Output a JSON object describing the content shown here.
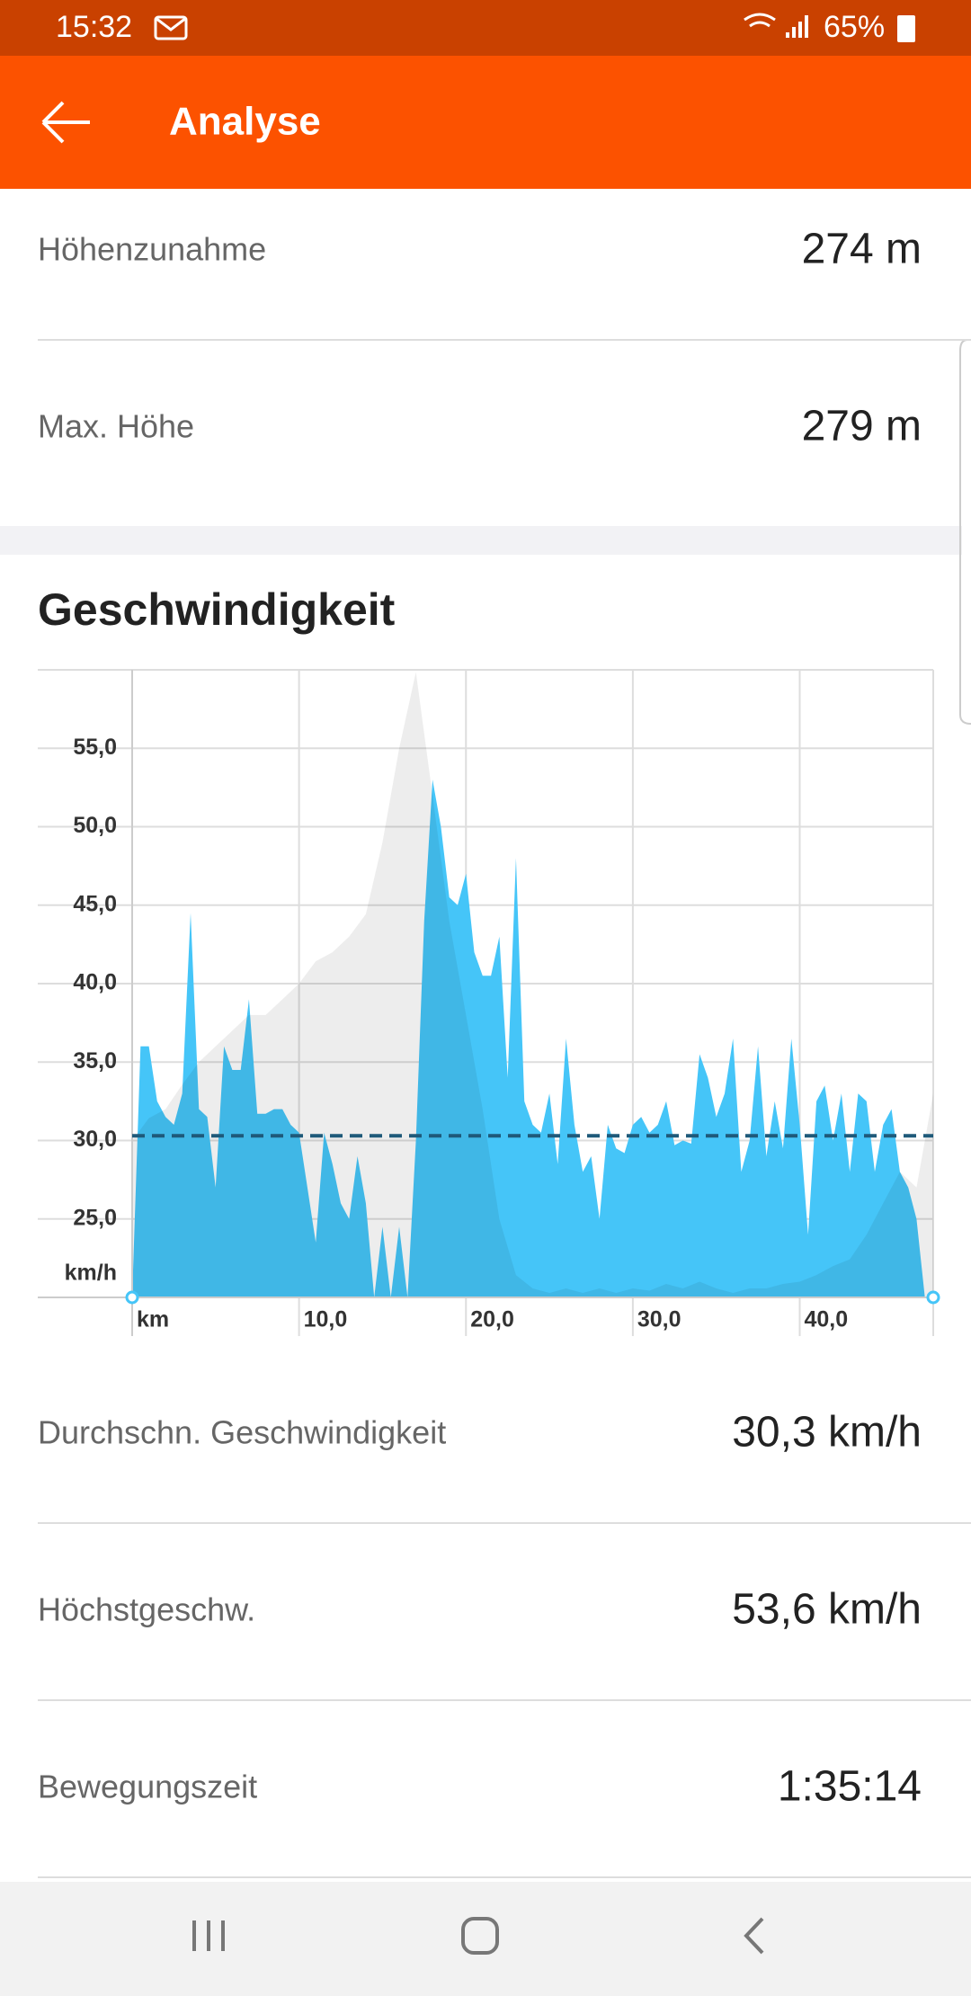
{
  "status_bar": {
    "time": "15:32",
    "battery": "65%"
  },
  "header": {
    "title": "Analyse"
  },
  "stats_top": [
    {
      "label": "Höhenzunahme",
      "value": "274 m"
    },
    {
      "label": "Max. Höhe",
      "value": "279 m"
    }
  ],
  "chart_data": {
    "type": "area",
    "title": "Geschwindigkeit",
    "xlabel": "km",
    "ylabel": "km/h",
    "x": [
      0,
      0.5,
      1,
      1.5,
      2,
      2.5,
      3,
      3.5,
      4,
      4.5,
      5,
      5.5,
      6,
      6.5,
      7,
      7.5,
      8,
      8.5,
      9,
      9.5,
      10,
      10.5,
      11,
      11.5,
      12,
      12.5,
      13,
      13.5,
      14,
      14.5,
      15,
      15.5,
      16,
      16.5,
      17,
      17.5,
      18,
      18.5,
      19,
      19.5,
      20,
      20.5,
      21,
      21.5,
      22,
      22.5,
      23,
      23.5,
      24,
      24.5,
      25,
      25.5,
      26,
      26.5,
      27,
      27.5,
      28,
      28.5,
      29,
      29.5,
      30,
      30.5,
      31,
      31.5,
      32,
      32.5,
      33,
      33.5,
      34,
      34.5,
      35,
      35.5,
      36,
      36.5,
      37,
      37.5,
      38,
      38.5,
      39,
      39.5,
      40,
      40.5,
      41,
      41.5,
      42,
      42.5,
      43,
      43.5,
      44,
      44.5,
      45,
      45.5,
      46,
      46.5,
      47,
      47.5,
      48
    ],
    "series": [
      {
        "color": "#45c5f8",
        "values": [
          20,
          36,
          36,
          32.5,
          31.5,
          31,
          33,
          44.5,
          32,
          31.5,
          27,
          36,
          34.5,
          34.5,
          39,
          31.7,
          31.7,
          32,
          32,
          31,
          30.5,
          27,
          23.5,
          30.5,
          28.5,
          26,
          25,
          29,
          26,
          20,
          24.5,
          20,
          24.5,
          20,
          30,
          44,
          53,
          50,
          45.5,
          45,
          47,
          42,
          40.5,
          40.5,
          43,
          34,
          48,
          32.5,
          31,
          30.5,
          33,
          28.5,
          36.5,
          31,
          28,
          29,
          25,
          31,
          29.5,
          29.2,
          31,
          31.5,
          30.5,
          31,
          32.5,
          29.7,
          30,
          29.8,
          35.5,
          34,
          31.5,
          33,
          36.5,
          28,
          30,
          36,
          29,
          32.5,
          29.5,
          36.5,
          31,
          24,
          32.5,
          33.5,
          30,
          33,
          28,
          33,
          32.5,
          28,
          31,
          32,
          28,
          27,
          25,
          20,
          20
        ]
      },
      {
        "color": "rgba(0,0,0,0.07)",
        "axis": "y2",
        "x": [
          0,
          1,
          2,
          3,
          4,
          5,
          6,
          7,
          8,
          9,
          10,
          11,
          12,
          13,
          14,
          15,
          16,
          17,
          18,
          19,
          20,
          21,
          22,
          23,
          24,
          25,
          26,
          27,
          28,
          29,
          30,
          31,
          32,
          33,
          34,
          35,
          36,
          37,
          38,
          39,
          40,
          41,
          42,
          43,
          44,
          45,
          46,
          47,
          48
        ],
        "values": [
          70,
          80,
          84,
          95,
          105,
          112,
          119,
          126,
          126,
          133,
          140,
          150,
          154,
          161,
          171,
          203,
          245,
          279,
          224,
          168,
          126,
          84,
          35,
          10,
          4,
          2,
          4,
          2,
          4,
          2,
          4,
          3,
          6,
          4,
          7,
          4,
          2,
          4,
          4,
          6,
          7,
          10,
          14,
          17,
          28,
          42,
          56,
          49,
          91
        ]
      }
    ],
    "average": 30.3,
    "average_color": "#1f5a7a",
    "xlim": [
      0,
      48
    ],
    "xticks": [
      {
        "value": 10,
        "label": "10,0"
      },
      {
        "value": 20,
        "label": "20,0"
      },
      {
        "value": 30,
        "label": "30,0"
      },
      {
        "value": 40,
        "label": "40,0"
      }
    ],
    "ylim": [
      20,
      60
    ],
    "y2lim": [
      0,
      280
    ],
    "yticks": [
      {
        "value": 25,
        "label": "25,0"
      },
      {
        "value": 30,
        "label": "30,0"
      },
      {
        "value": 35,
        "label": "35,0"
      },
      {
        "value": 40,
        "label": "40,0"
      },
      {
        "value": 45,
        "label": "45,0"
      },
      {
        "value": 50,
        "label": "50,0"
      },
      {
        "value": 55,
        "label": "55,0"
      }
    ],
    "grid": true
  },
  "stats_bottom": [
    {
      "label": "Durchschn. Geschwindigkeit",
      "value": "30,3 km/h"
    },
    {
      "label": "Höchstgeschw.",
      "value": "53,6 km/h"
    },
    {
      "label": "Bewegungszeit",
      "value": "1:35:14"
    }
  ]
}
